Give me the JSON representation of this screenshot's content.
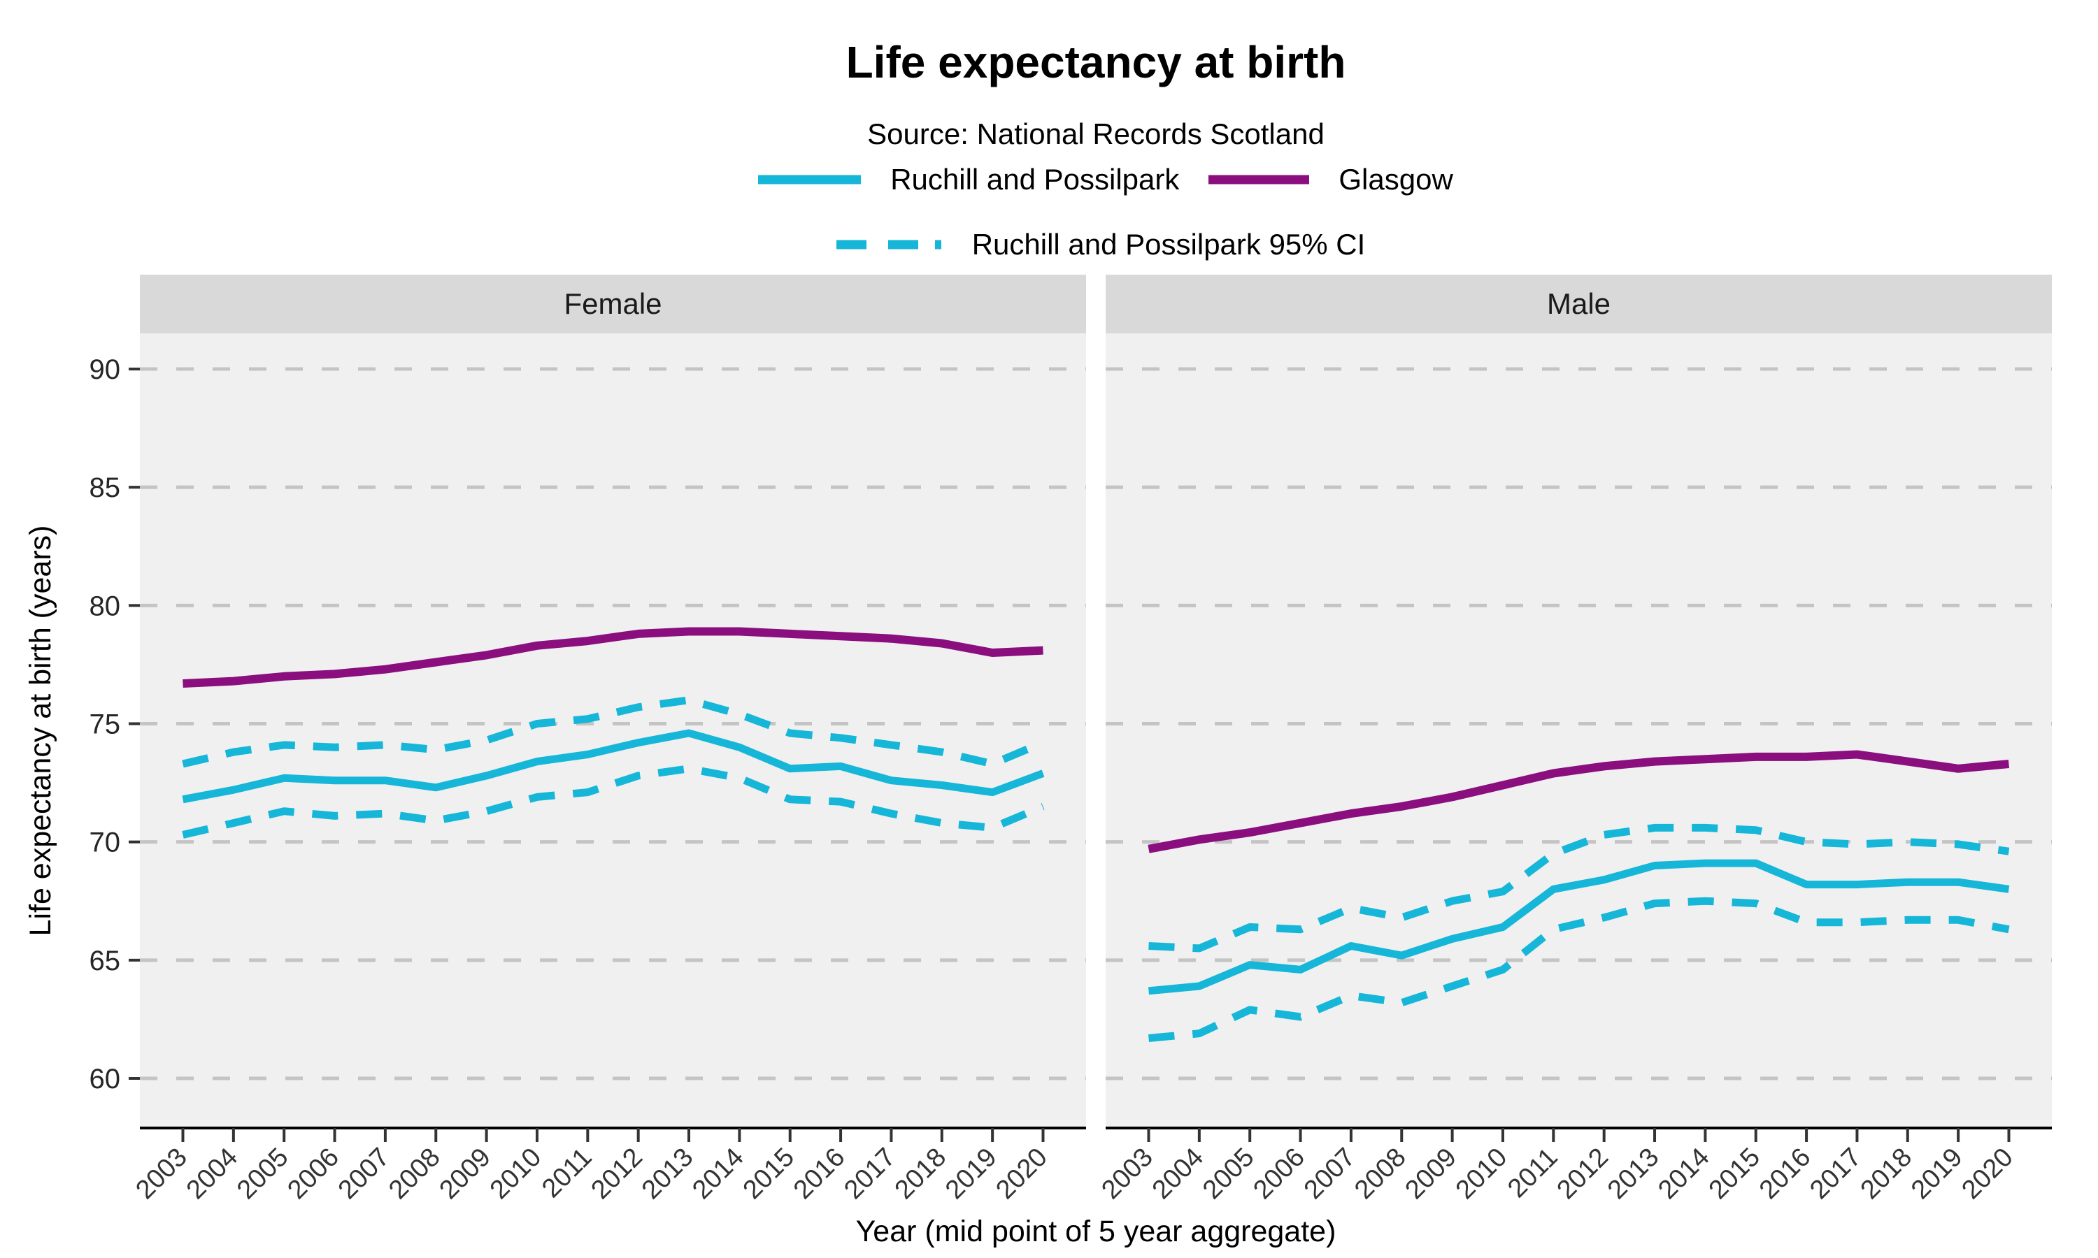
{
  "header": {
    "title": "Life expectancy at birth",
    "subtitle": "Source: National Records Scotland",
    "legend": [
      {
        "label": "Ruchill and Possilpark",
        "style": "solid",
        "color": "#16B6D8"
      },
      {
        "label": "Glasgow",
        "style": "solid",
        "color": "#8B0E7F"
      },
      {
        "label": "Ruchill and Possilpark 95% CI",
        "style": "dashed",
        "color": "#16B6D8"
      }
    ]
  },
  "chart_data": {
    "type": "line",
    "title": "Life expectancy at birth",
    "subtitle": "Source: National Records Scotland",
    "facets": [
      "Female",
      "Male"
    ],
    "xlabel": "Year (mid point of 5 year aggregate)",
    "ylabel": "Life expectancy at birth (years)",
    "x": [
      2003,
      2004,
      2005,
      2006,
      2007,
      2008,
      2009,
      2010,
      2011,
      2012,
      2013,
      2014,
      2015,
      2016,
      2017,
      2018,
      2019,
      2020
    ],
    "yticks": [
      60,
      65,
      70,
      75,
      80,
      85,
      90
    ],
    "ylim": [
      57.8,
      91.5
    ],
    "grid": "horizontal-dashed",
    "legend_position": "top",
    "series": [
      {
        "facet": "Female",
        "name": "Ruchill and Possilpark 95% CI upper",
        "style": "dashed",
        "color": "#16B6D8",
        "values": [
          73.3,
          73.8,
          74.1,
          74.0,
          74.1,
          73.9,
          74.3,
          75.0,
          75.2,
          75.7,
          76.0,
          75.4,
          74.6,
          74.4,
          74.1,
          73.8,
          73.3,
          74.2
        ]
      },
      {
        "facet": "Female",
        "name": "Ruchill and Possilpark 95% CI lower",
        "style": "dashed",
        "color": "#16B6D8",
        "values": [
          70.3,
          70.8,
          71.3,
          71.1,
          71.2,
          70.9,
          71.3,
          71.9,
          72.1,
          72.8,
          73.1,
          72.7,
          71.8,
          71.7,
          71.2,
          70.8,
          70.6,
          71.5
        ]
      },
      {
        "facet": "Female",
        "name": "Ruchill and Possilpark",
        "style": "solid",
        "color": "#16B6D8",
        "values": [
          71.8,
          72.2,
          72.7,
          72.6,
          72.6,
          72.3,
          72.8,
          73.4,
          73.7,
          74.2,
          74.6,
          74.0,
          73.1,
          73.2,
          72.6,
          72.4,
          72.1,
          72.9
        ]
      },
      {
        "facet": "Female",
        "name": "Glasgow",
        "style": "solid",
        "color": "#8B0E7F",
        "values": [
          76.7,
          76.8,
          77.0,
          77.1,
          77.3,
          77.6,
          77.9,
          78.3,
          78.5,
          78.8,
          78.9,
          78.9,
          78.8,
          78.7,
          78.6,
          78.4,
          78.0,
          78.1
        ]
      },
      {
        "facet": "Male",
        "name": "Ruchill and Possilpark 95% CI upper",
        "style": "dashed",
        "color": "#16B6D8",
        "values": [
          65.6,
          65.5,
          66.4,
          66.3,
          67.2,
          66.8,
          67.5,
          67.9,
          69.5,
          70.3,
          70.6,
          70.6,
          70.5,
          70.0,
          69.9,
          70.0,
          69.9,
          69.6
        ]
      },
      {
        "facet": "Male",
        "name": "Ruchill and Possilpark 95% CI lower",
        "style": "dashed",
        "color": "#16B6D8",
        "values": [
          61.7,
          61.9,
          62.9,
          62.6,
          63.5,
          63.2,
          63.9,
          64.6,
          66.3,
          66.8,
          67.4,
          67.5,
          67.4,
          66.6,
          66.6,
          66.7,
          66.7,
          66.3
        ]
      },
      {
        "facet": "Male",
        "name": "Ruchill and Possilpark",
        "style": "solid",
        "color": "#16B6D8",
        "values": [
          63.7,
          63.9,
          64.8,
          64.6,
          65.6,
          65.2,
          65.9,
          66.4,
          68.0,
          68.4,
          69.0,
          69.1,
          69.1,
          68.2,
          68.2,
          68.3,
          68.3,
          68.0
        ]
      },
      {
        "facet": "Male",
        "name": "Glasgow",
        "style": "solid",
        "color": "#8B0E7F",
        "values": [
          69.7,
          70.1,
          70.4,
          70.8,
          71.2,
          71.5,
          71.9,
          72.4,
          72.9,
          73.2,
          73.4,
          73.5,
          73.6,
          73.6,
          73.7,
          73.4,
          73.1,
          73.3
        ]
      }
    ]
  }
}
